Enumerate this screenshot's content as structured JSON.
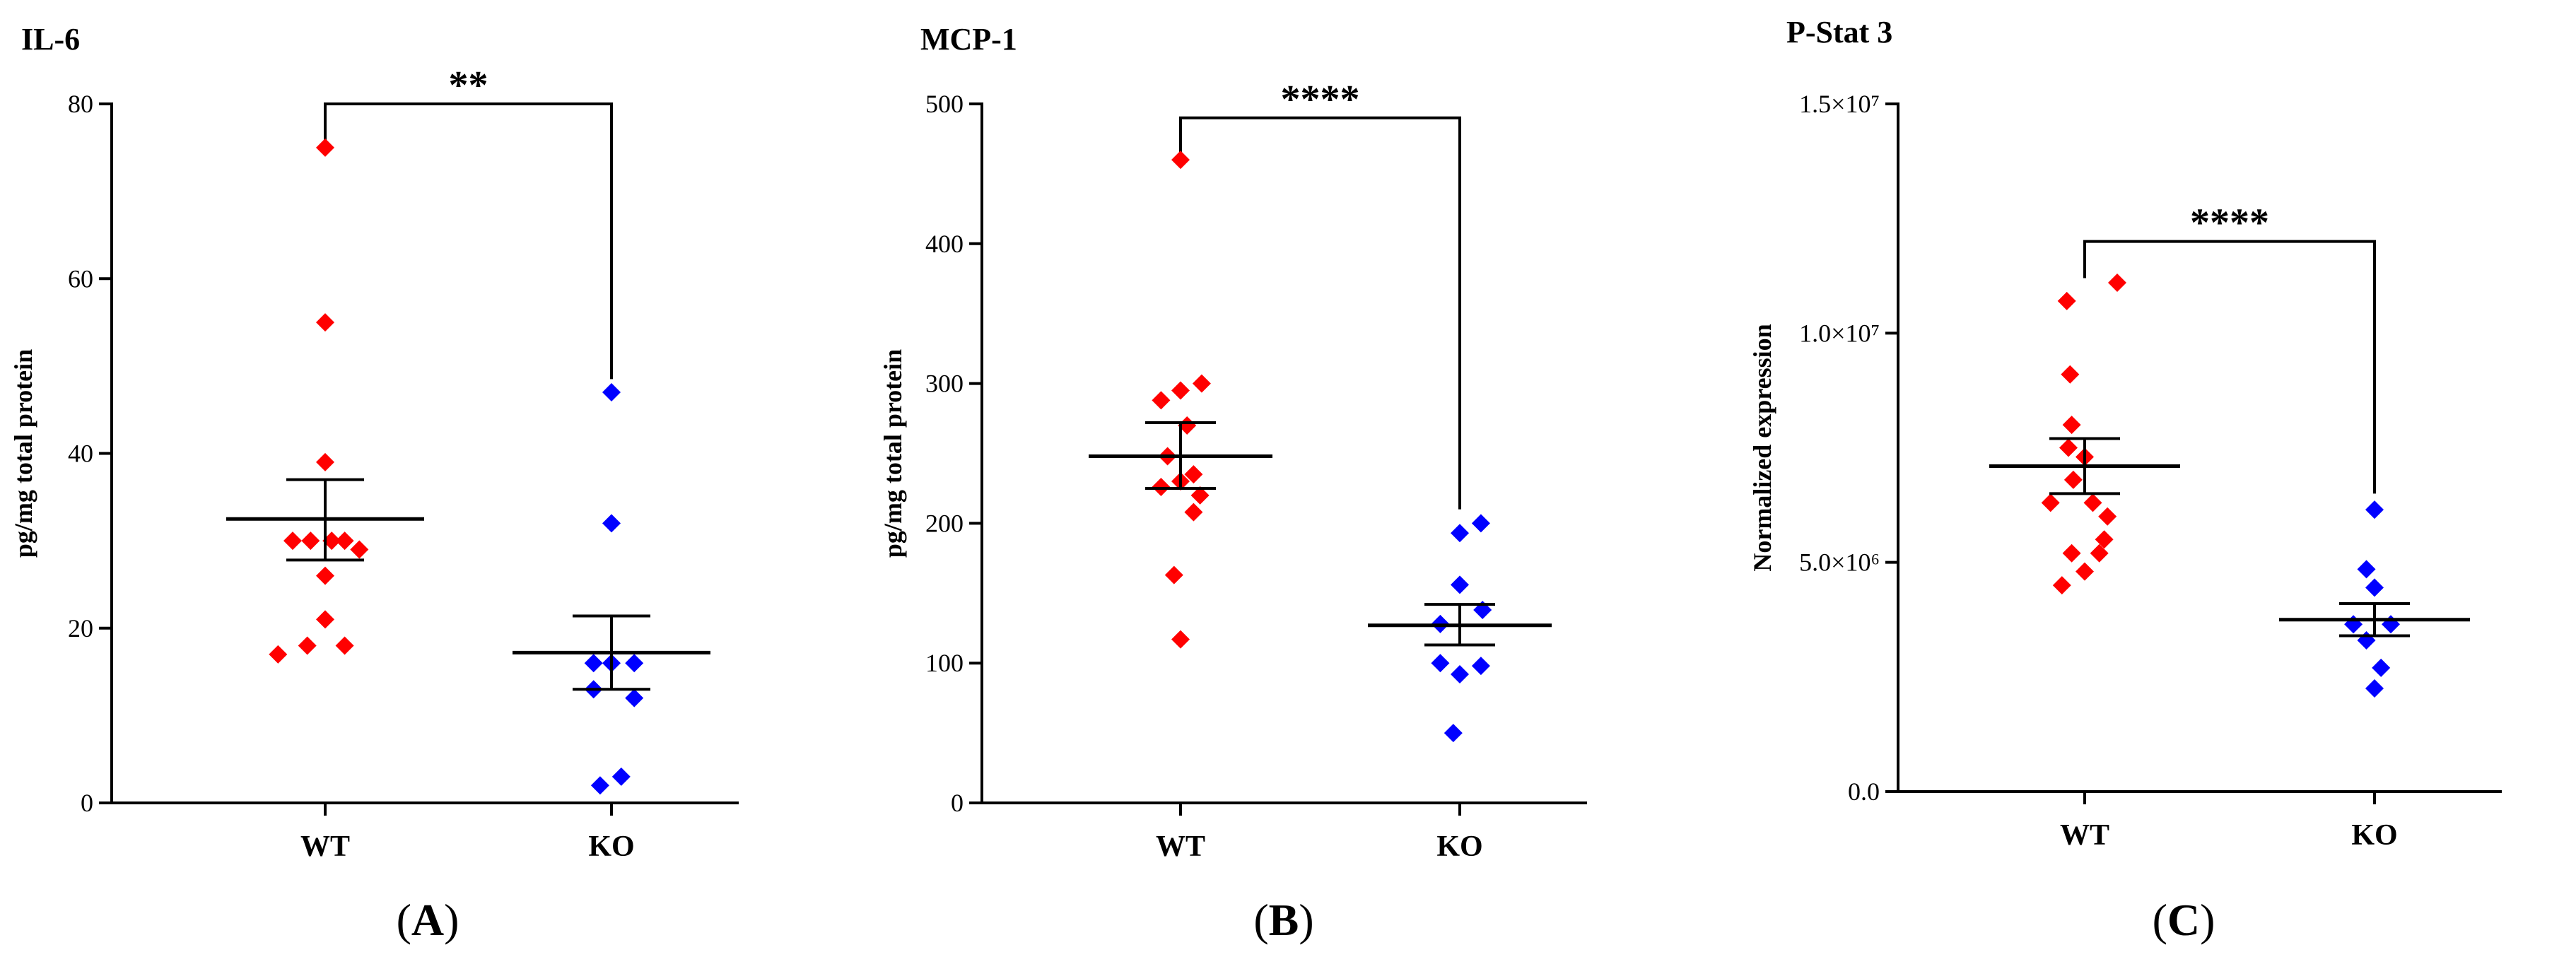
{
  "chart_data": [
    {
      "type": "scatter",
      "title": "IL-6",
      "ylabel": "pg/mg total protein",
      "xlabel": "",
      "categories": [
        "WT",
        "KO"
      ],
      "ylim": [
        0,
        80
      ],
      "yticks": [
        0,
        20,
        40,
        60,
        80
      ],
      "ytick_labels": [
        "0",
        "20",
        "40",
        "60",
        "80"
      ],
      "series": [
        {
          "name": "WT",
          "color": "#ff0000",
          "points": [
            {
              "x": 0.0,
              "y": 75
            },
            {
              "x": 0.0,
              "y": 55
            },
            {
              "x": 0.0,
              "y": 39
            },
            {
              "x": -0.2,
              "y": 30
            },
            {
              "x": -0.09,
              "y": 30
            },
            {
              "x": 0.04,
              "y": 30
            },
            {
              "x": 0.12,
              "y": 30
            },
            {
              "x": 0.21,
              "y": 29
            },
            {
              "x": 0.0,
              "y": 26
            },
            {
              "x": 0.0,
              "y": 21
            },
            {
              "x": -0.11,
              "y": 18
            },
            {
              "x": 0.12,
              "y": 18
            },
            {
              "x": -0.29,
              "y": 17
            }
          ]
        },
        {
          "name": "KO",
          "color": "#0000ff",
          "points": [
            {
              "x": 0.0,
              "y": 47
            },
            {
              "x": 0.0,
              "y": 32
            },
            {
              "x": -0.11,
              "y": 16
            },
            {
              "x": 0.0,
              "y": 16
            },
            {
              "x": 0.14,
              "y": 16
            },
            {
              "x": -0.11,
              "y": 13
            },
            {
              "x": 0.14,
              "y": 12
            },
            {
              "x": 0.06,
              "y": 3
            },
            {
              "x": -0.07,
              "y": 2
            }
          ]
        }
      ],
      "summary": [
        {
          "mean": 32.5,
          "sem_low": 27.8,
          "sem_high": 37
        },
        {
          "mean": 17.2,
          "sem_low": 13,
          "sem_high": 21.4
        }
      ],
      "significance": {
        "label": "**",
        "from": "WT",
        "to": "KO",
        "y_top": 80,
        "wt_end": 75,
        "ko_end": 48.5
      },
      "panel_label": "A"
    },
    {
      "type": "scatter",
      "title": "MCP-1",
      "ylabel": "pg/mg total protein",
      "xlabel": "",
      "categories": [
        "WT",
        "KO"
      ],
      "ylim": [
        0,
        500
      ],
      "yticks": [
        0,
        100,
        200,
        300,
        400,
        500
      ],
      "ytick_labels": [
        "0",
        "100",
        "200",
        "300",
        "400",
        "500"
      ],
      "series": [
        {
          "name": "WT",
          "color": "#ff0000",
          "points": [
            {
              "x": 0.0,
              "y": 460
            },
            {
              "x": 0.13,
              "y": 300
            },
            {
              "x": -0.12,
              "y": 288
            },
            {
              "x": 0.0,
              "y": 295
            },
            {
              "x": 0.04,
              "y": 270
            },
            {
              "x": -0.08,
              "y": 248
            },
            {
              "x": 0.08,
              "y": 235
            },
            {
              "x": -0.12,
              "y": 226
            },
            {
              "x": 0.0,
              "y": 230
            },
            {
              "x": 0.12,
              "y": 220
            },
            {
              "x": 0.08,
              "y": 208
            },
            {
              "x": -0.04,
              "y": 163
            },
            {
              "x": 0.0,
              "y": 117
            }
          ]
        },
        {
          "name": "KO",
          "color": "#0000ff",
          "points": [
            {
              "x": 0.13,
              "y": 200
            },
            {
              "x": 0.0,
              "y": 193
            },
            {
              "x": 0.0,
              "y": 156
            },
            {
              "x": 0.14,
              "y": 138
            },
            {
              "x": -0.12,
              "y": 128
            },
            {
              "x": -0.12,
              "y": 100
            },
            {
              "x": 0.13,
              "y": 98
            },
            {
              "x": 0.0,
              "y": 92
            },
            {
              "x": -0.04,
              "y": 50
            }
          ]
        }
      ],
      "summary": [
        {
          "mean": 248,
          "sem_low": 225,
          "sem_high": 272
        },
        {
          "mean": 127,
          "sem_low": 113,
          "sem_high": 142
        }
      ],
      "significance": {
        "label": "****",
        "from": "WT",
        "to": "KO",
        "y_top": 490,
        "wt_end": 460,
        "ko_end": 210
      },
      "panel_label": "B"
    },
    {
      "type": "scatter",
      "title": "P-Stat 3",
      "ylabel": "Normalized expression",
      "xlabel": "",
      "categories": [
        "WT",
        "KO"
      ],
      "ylim": [
        0,
        15000000
      ],
      "yticks": [
        0,
        5000000,
        10000000,
        15000000
      ],
      "ytick_labels": [
        "0.0",
        "5.0×10⁶",
        "1.0×10⁷",
        "1.5×10⁷"
      ],
      "series": [
        {
          "name": "WT",
          "color": "#ff0000",
          "points": [
            {
              "x": 0.2,
              "y": 11100000
            },
            {
              "x": -0.11,
              "y": 10700000
            },
            {
              "x": -0.09,
              "y": 9100000
            },
            {
              "x": -0.08,
              "y": 8000000
            },
            {
              "x": -0.1,
              "y": 7500000
            },
            {
              "x": 0.0,
              "y": 7300000
            },
            {
              "x": -0.07,
              "y": 6800000
            },
            {
              "x": -0.21,
              "y": 6300000
            },
            {
              "x": 0.05,
              "y": 6300000
            },
            {
              "x": 0.14,
              "y": 6000000
            },
            {
              "x": 0.12,
              "y": 5500000
            },
            {
              "x": -0.08,
              "y": 5200000
            },
            {
              "x": 0.09,
              "y": 5200000
            },
            {
              "x": 0.0,
              "y": 4800000
            },
            {
              "x": -0.14,
              "y": 4500000
            }
          ]
        },
        {
          "name": "KO",
          "color": "#0000ff",
          "points": [
            {
              "x": 0.0,
              "y": 6150000
            },
            {
              "x": -0.05,
              "y": 4850000
            },
            {
              "x": 0.0,
              "y": 4450000
            },
            {
              "x": -0.13,
              "y": 3650000
            },
            {
              "x": 0.1,
              "y": 3650000
            },
            {
              "x": -0.05,
              "y": 3300000
            },
            {
              "x": 0.04,
              "y": 2700000
            },
            {
              "x": 0.0,
              "y": 2250000
            }
          ]
        }
      ],
      "summary": [
        {
          "mean": 7100000,
          "sem_low": 6500000,
          "sem_high": 7700000
        },
        {
          "mean": 3750000,
          "sem_low": 3400000,
          "sem_high": 4100000
        }
      ],
      "significance": {
        "label": "****",
        "from": "WT",
        "to": "KO",
        "y_top": 12000000,
        "wt_end": 11200000,
        "ko_end": 6500000
      },
      "panel_label": "C"
    }
  ],
  "panel_letters": [
    {
      "open": "(",
      "letter": "A",
      "close": ")"
    },
    {
      "open": "(",
      "letter": "B",
      "close": ")"
    },
    {
      "open": "(",
      "letter": "C",
      "close": ")"
    }
  ]
}
